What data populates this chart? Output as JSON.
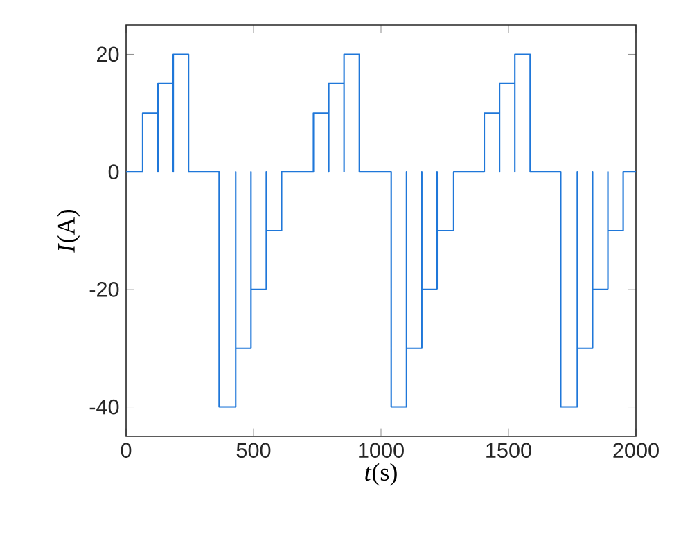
{
  "chart_data": {
    "type": "line",
    "xlabel": "*t*(s)",
    "ylabel": "*I*(A)",
    "xlim": [
      0,
      2000
    ],
    "ylim": [
      -45,
      25
    ],
    "xticks": [
      0,
      500,
      1000,
      1500,
      2000
    ],
    "yticks": [
      -40,
      -20,
      0,
      20
    ],
    "grid": false,
    "line_style": "solid",
    "series": [
      {
        "color": "#1f77d9",
        "x": [
          0,
          65,
          65,
          125,
          125,
          125,
          185,
          185,
          185,
          245,
          245,
          365,
          365,
          430,
          430,
          430,
          490,
          490,
          490,
          550,
          550,
          550,
          610,
          610,
          735,
          735,
          795,
          795,
          795,
          855,
          855,
          855,
          915,
          915,
          1040,
          1040,
          1100,
          1100,
          1100,
          1160,
          1160,
          1160,
          1220,
          1220,
          1220,
          1285,
          1285,
          1405,
          1405,
          1465,
          1465,
          1465,
          1525,
          1525,
          1525,
          1585,
          1585,
          1705,
          1705,
          1770,
          1770,
          1770,
          1830,
          1830,
          1830,
          1890,
          1890,
          1890,
          1950,
          1950,
          2000
        ],
        "values": [
          0,
          0,
          10,
          10,
          0,
          15,
          15,
          0,
          20,
          20,
          0,
          0,
          -40,
          -40,
          0,
          -30,
          -30,
          0,
          -20,
          -20,
          0,
          -10,
          -10,
          0,
          0,
          10,
          10,
          0,
          15,
          15,
          0,
          20,
          20,
          0,
          0,
          -40,
          -40,
          0,
          -30,
          -30,
          0,
          -20,
          -20,
          0,
          -10,
          -10,
          0,
          0,
          10,
          10,
          0,
          15,
          15,
          0,
          20,
          20,
          0,
          0,
          -40,
          -40,
          0,
          -30,
          -30,
          0,
          -20,
          -20,
          0,
          -10,
          -10,
          0,
          0
        ]
      }
    ]
  }
}
